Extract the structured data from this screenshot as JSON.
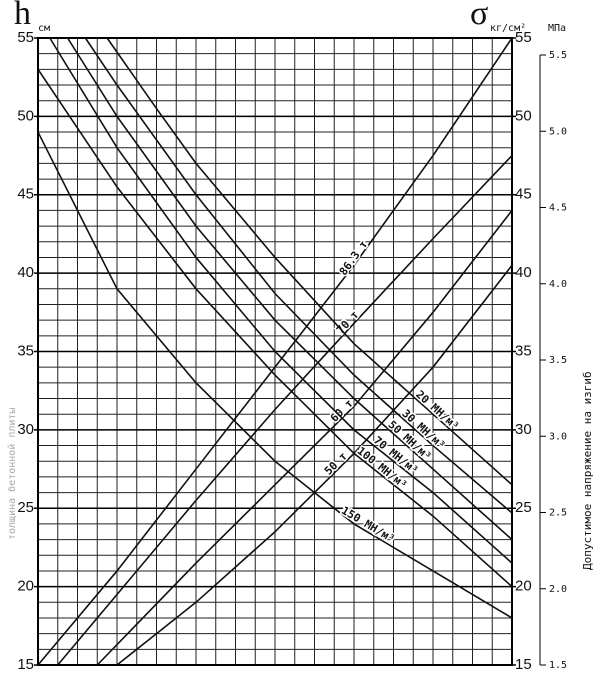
{
  "chart_data": {
    "type": "line",
    "y_unit_left": "h",
    "y_unit_left_sub": "см",
    "y_unit_right": "σ",
    "y_unit_right_sub": "кг/см²",
    "y2_unit": "МПа",
    "ylabel": "толщина бетонной плиты",
    "y2label": "Допустимое напряжение на изгиб",
    "xlim": [
      0,
      24
    ],
    "ylim": [
      15,
      55
    ],
    "yticks": [
      15,
      20,
      25,
      30,
      35,
      40,
      45,
      50,
      55
    ],
    "y2lim": [
      1.5,
      5.5
    ],
    "y2ticks": [
      1.5,
      {
        "value": 2,
        "label": "2.0"
      },
      2.5,
      {
        "value": 3,
        "label": "3.0"
      },
      3.5,
      {
        "value": 4,
        "label": "4.0"
      },
      4.5,
      {
        "value": 5,
        "label": "5.0"
      },
      5.5
    ],
    "grid": true,
    "series": [
      {
        "name": "86.3 т",
        "color": "#111",
        "x": [
          0,
          4,
          8,
          12,
          16,
          20,
          24
        ],
        "values": [
          15,
          21,
          27.5,
          34,
          40.5,
          47.5,
          55
        ]
      },
      {
        "name": "70 т",
        "color": "#111",
        "x": [
          1,
          4,
          8,
          12,
          16,
          20,
          24
        ],
        "values": [
          15,
          19.5,
          25.5,
          31.3,
          36.8,
          42.2,
          47.5
        ]
      },
      {
        "name": "60 т",
        "color": "#111",
        "x": [
          3,
          8,
          12,
          16,
          20,
          24
        ],
        "values": [
          15,
          21.5,
          26.5,
          31.5,
          37.5,
          44
        ]
      },
      {
        "name": "50 т",
        "color": "#111",
        "x": [
          4,
          8,
          12,
          16,
          20,
          24
        ],
        "values": [
          15,
          19,
          23.5,
          28.5,
          34,
          40.5
        ]
      },
      {
        "name": "20 МН/м³",
        "color": "#111",
        "x": [
          3.5,
          6,
          8,
          12,
          16,
          20,
          24
        ],
        "values": [
          55,
          50.5,
          47,
          41,
          35.5,
          31,
          26.5
        ]
      },
      {
        "name": "30 МН/м³",
        "color": "#111",
        "x": [
          2.4,
          4,
          8,
          12,
          16,
          20,
          24
        ],
        "values": [
          55,
          52,
          45,
          38.7,
          33.5,
          29,
          24.7
        ]
      },
      {
        "name": "50 МН/м³",
        "color": "#111",
        "x": [
          1.5,
          4,
          8,
          12,
          16,
          20,
          24
        ],
        "values": [
          55,
          50,
          43,
          37,
          32,
          27.5,
          23
        ]
      },
      {
        "name": "70 МН/м³",
        "color": "#111",
        "x": [
          0.6,
          4,
          8,
          12,
          16,
          20,
          24
        ],
        "values": [
          55,
          48,
          41,
          35,
          30,
          26,
          21.5
        ]
      },
      {
        "name": "100 МН/м³",
        "color": "#111",
        "x": [
          0,
          4,
          8,
          12,
          16,
          20,
          24
        ],
        "values": [
          53,
          45.5,
          39,
          33.5,
          28.5,
          24.5,
          20
        ]
      },
      {
        "name": "150 МН/м³",
        "color": "#111",
        "x": [
          0,
          4,
          8,
          12,
          16,
          20,
          24
        ],
        "values": [
          49,
          39,
          33,
          28,
          24,
          21,
          18
        ]
      }
    ]
  }
}
